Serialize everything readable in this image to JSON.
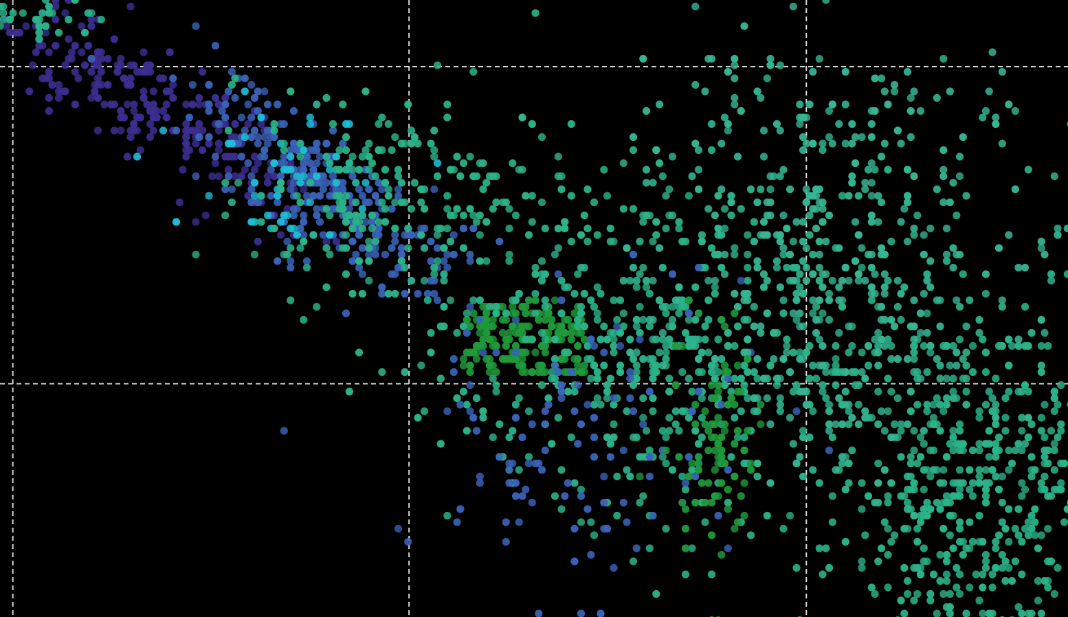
{
  "chart_data": {
    "type": "scatter",
    "title": "",
    "xlabel": "",
    "ylabel": "",
    "grid": true,
    "background": "#000000",
    "grid_color": "#d8d8d8",
    "legend": "none",
    "palette": {
      "indigo": "#3b2e8f",
      "royal_blue": "#3a63b8",
      "cyan": "#1ec0d8",
      "teal": "#2bb38a",
      "sea_green": "#36b593",
      "green": "#1f9a3a"
    },
    "clusters": [
      {
        "name": "",
        "color": "#3b2e8f",
        "center": [
          0.14,
          0.17
        ],
        "spread": [
          0.075,
          0.1
        ],
        "count": 260,
        "shape": "band"
      },
      {
        "name": "",
        "color": "#3a63b8",
        "center": [
          0.3,
          0.31
        ],
        "spread": [
          0.065,
          0.12
        ],
        "count": 280,
        "shape": "band"
      },
      {
        "name": "",
        "color": "#1ec0d8",
        "center": [
          0.27,
          0.29
        ],
        "spread": [
          0.05,
          0.06
        ],
        "count": 50,
        "shape": "blob"
      },
      {
        "name": "",
        "color": "#2bb38a",
        "center": [
          0.37,
          0.32
        ],
        "spread": [
          0.07,
          0.08
        ],
        "count": 220,
        "shape": "blob"
      },
      {
        "name": "",
        "color": "#1f9a3a",
        "center": [
          0.49,
          0.55
        ],
        "spread": [
          0.055,
          0.06
        ],
        "count": 180,
        "shape": "grid"
      },
      {
        "name": "",
        "color": "#2bb38a",
        "center": [
          0.63,
          0.57
        ],
        "spread": [
          0.1,
          0.14
        ],
        "count": 520,
        "shape": "blob"
      },
      {
        "name": "",
        "color": "#3a63b8",
        "center": [
          0.53,
          0.72
        ],
        "spread": [
          0.08,
          0.15
        ],
        "count": 120,
        "shape": "blob"
      },
      {
        "name": "",
        "color": "#36b593",
        "center": [
          0.79,
          0.45
        ],
        "spread": [
          0.09,
          0.16
        ],
        "count": 420,
        "shape": "blob"
      },
      {
        "name": "",
        "color": "#1f9a3a",
        "center": [
          0.67,
          0.72
        ],
        "spread": [
          0.04,
          0.1
        ],
        "count": 90,
        "shape": "column"
      },
      {
        "name": "",
        "color": "#2bb38a",
        "center": [
          0.92,
          0.8
        ],
        "spread": [
          0.07,
          0.15
        ],
        "count": 520,
        "shape": "blob"
      },
      {
        "name": "",
        "color": "#36b593",
        "center": [
          0.78,
          0.2
        ],
        "spread": [
          0.09,
          0.06
        ],
        "count": 60,
        "shape": "sparse"
      },
      {
        "name": "",
        "color": "#2bb38a",
        "center": [
          0.03,
          0.02
        ],
        "spread": [
          0.03,
          0.02
        ],
        "count": 40,
        "shape": "blob"
      }
    ],
    "vgrid": [
      0.012,
      0.383,
      0.755
    ],
    "hgrid": [
      0.108,
      0.622
    ]
  }
}
